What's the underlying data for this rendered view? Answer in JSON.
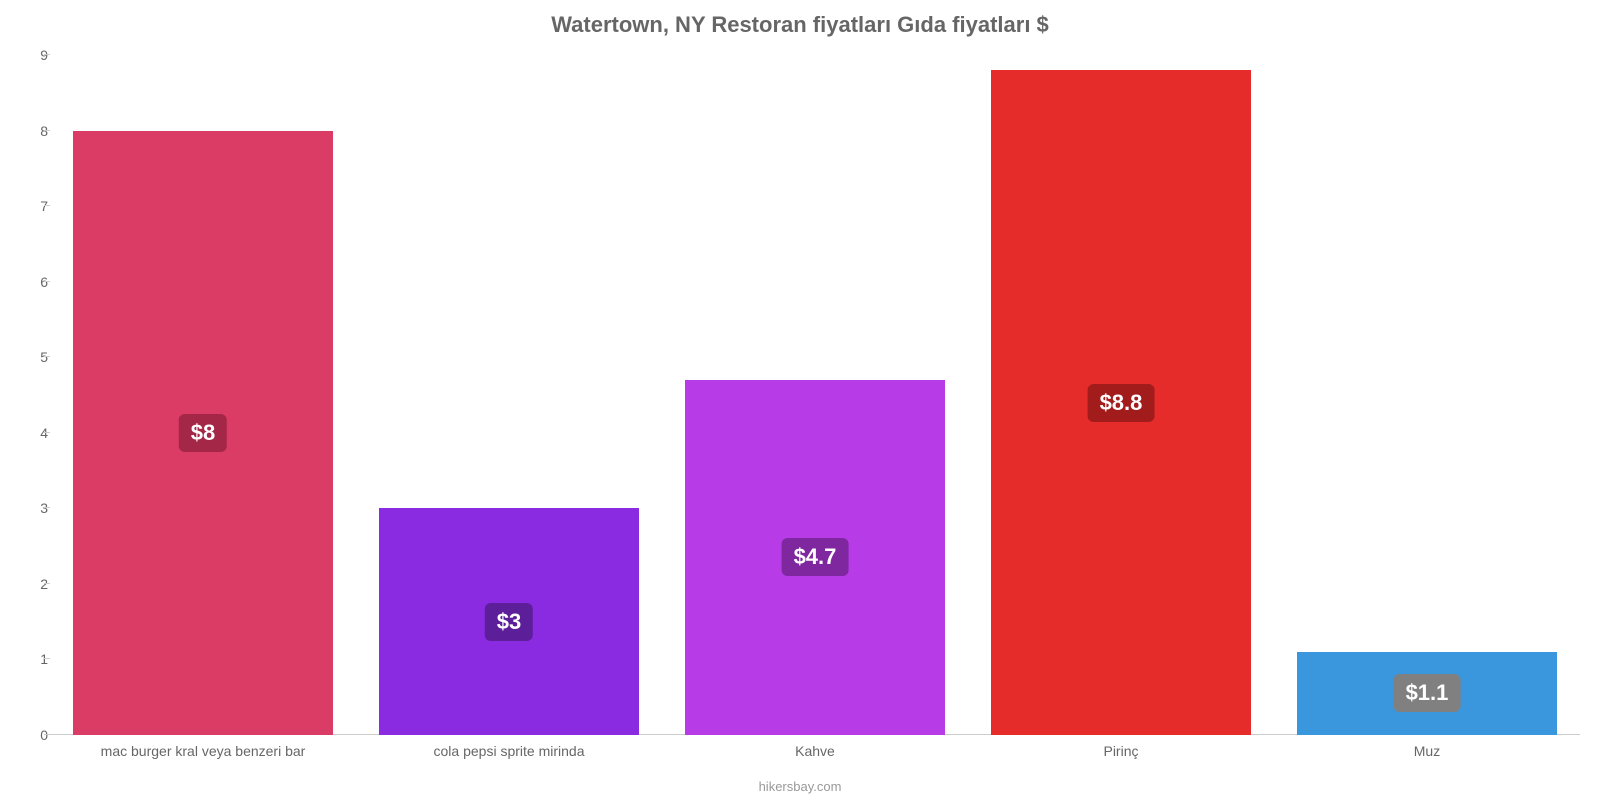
{
  "chart": {
    "type": "bar",
    "title": "Watertown, NY Restoran fiyatları Gıda fiyatları $",
    "title_fontsize": 22,
    "title_color": "#666666",
    "background_color": "#ffffff",
    "axis_color": "#cccccc",
    "tick_label_color": "#666666",
    "tick_label_fontsize": 14,
    "source": "hikersbay.com",
    "source_color": "#999999",
    "ylim_min": 0,
    "ylim_max": 9,
    "ytick_step": 1,
    "yticks": [
      {
        "value": 0,
        "label": "0"
      },
      {
        "value": 1,
        "label": "1"
      },
      {
        "value": 2,
        "label": "2"
      },
      {
        "value": 3,
        "label": "3"
      },
      {
        "value": 4,
        "label": "4"
      },
      {
        "value": 5,
        "label": "5"
      },
      {
        "value": 6,
        "label": "6"
      },
      {
        "value": 7,
        "label": "7"
      },
      {
        "value": 8,
        "label": "8"
      },
      {
        "value": 9,
        "label": "9"
      }
    ],
    "bar_width_ratio": 0.85,
    "value_label_fontsize": 22,
    "value_label_color": "#ffffff",
    "value_label_bg_opacity": 0.75,
    "bars": [
      {
        "category": "mac burger kral veya benzeri bar",
        "value": 8,
        "value_label": "$8",
        "color": "#db3c66",
        "badge_bg": "#a42747"
      },
      {
        "category": "cola pepsi sprite mirinda",
        "value": 3,
        "value_label": "$3",
        "color": "#8a2be2",
        "badge_bg": "#5d1e9a"
      },
      {
        "category": "Kahve",
        "value": 4.7,
        "value_label": "$4.7",
        "color": "#b73be6",
        "badge_bg": "#7e279f"
      },
      {
        "category": "Pirinç",
        "value": 8.8,
        "value_label": "$8.8",
        "color": "#e62b2b",
        "badge_bg": "#a31c1c"
      },
      {
        "category": "Muz",
        "value": 1.1,
        "value_label": "$1.1",
        "color": "#3a96dd",
        "badge_bg": "#808080"
      }
    ]
  }
}
